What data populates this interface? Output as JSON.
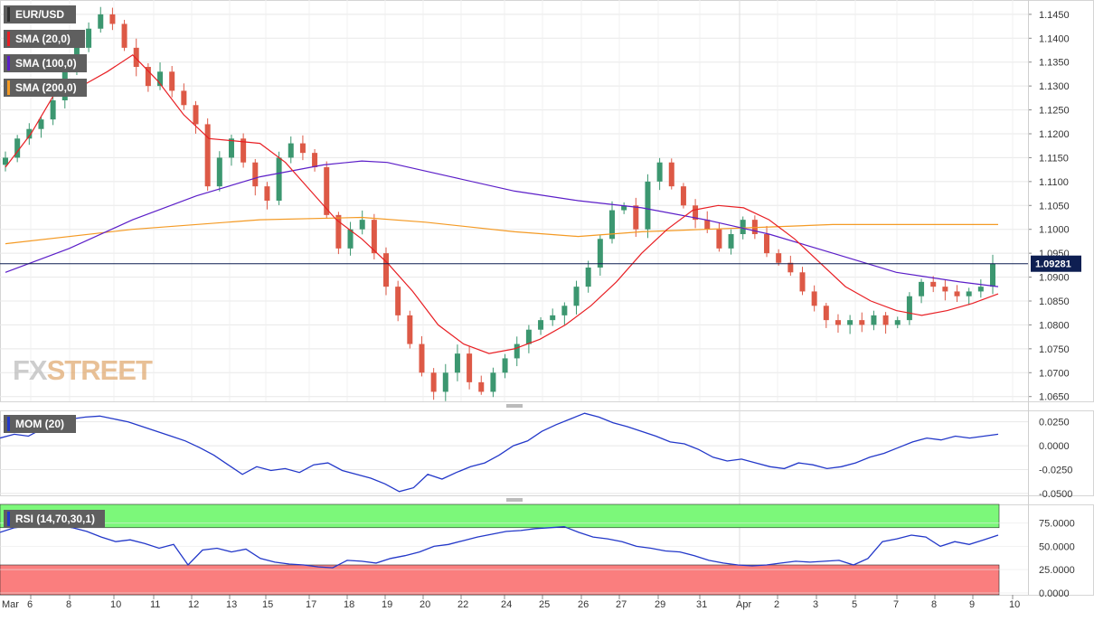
{
  "symbol": "EUR/USD",
  "colors": {
    "bull": "#3c9770",
    "bear": "#dd5946",
    "sma20": "#e81f24",
    "sma100": "#5b1ec8",
    "sma200": "#f49a24",
    "mom": "#2338c9",
    "rsi": "#2338c9",
    "overbought_zone": "#7cf87a",
    "oversold_zone": "#fa7e7e",
    "grid": "#e8e8e8",
    "last_price_line": "#0e1f52"
  },
  "legend": {
    "symbol": "EUR/USD",
    "sma20": "SMA (20,0)",
    "sma100": "SMA (100,0)",
    "sma200": "SMA (200,0)",
    "mom": "MOM (20)",
    "rsi": "RSI (14,70,30,1)"
  },
  "last_price": "1.09281",
  "watermark": {
    "part1": "FX",
    "part2": "STREET"
  },
  "chart_data": [
    {
      "type": "candlestick",
      "title": "EUR/USD",
      "timeframe_labels": [
        "Mar",
        "6",
        "8",
        "10",
        "11",
        "12",
        "13",
        "15",
        "17",
        "18",
        "19",
        "20",
        "22",
        "24",
        "25",
        "26",
        "27",
        "29",
        "31",
        "Apr",
        "2",
        "3",
        "5",
        "7",
        "8",
        "9",
        "10"
      ],
      "y_ticks": [
        "1.1450",
        "1.1400",
        "1.1350",
        "1.1300",
        "1.1250",
        "1.1200",
        "1.1150",
        "1.1100",
        "1.1050",
        "1.1000",
        "1.0950",
        "1.0900",
        "1.0850",
        "1.0800",
        "1.0750",
        "1.0700",
        "1.0650"
      ],
      "ylim": [
        1.064,
        1.148
      ],
      "last_price": 1.09281,
      "price_path": [
        1.115,
        1.119,
        1.121,
        1.123,
        1.127,
        1.133,
        1.138,
        1.142,
        1.145,
        1.143,
        1.138,
        1.134,
        1.13,
        1.133,
        1.129,
        1.126,
        1.122,
        1.109,
        1.115,
        1.119,
        1.114,
        1.109,
        1.106,
        1.115,
        1.118,
        1.116,
        1.113,
        1.103,
        1.096,
        1.1,
        1.102,
        1.095,
        1.088,
        1.082,
        1.076,
        1.07,
        1.066,
        1.07,
        1.074,
        1.068,
        1.066,
        1.07,
        1.073,
        1.076,
        1.079,
        1.081,
        1.082,
        1.084,
        1.088,
        1.092,
        1.098,
        1.104,
        1.105,
        1.1,
        1.11,
        1.114,
        1.109,
        1.105,
        1.102,
        1.1,
        1.096,
        1.099,
        1.102,
        1.099,
        1.095,
        1.093,
        1.091,
        1.087,
        1.084,
        1.081,
        1.08,
        1.081,
        1.08,
        1.082,
        1.08,
        1.081,
        1.086,
        1.089,
        1.088,
        1.087,
        1.086,
        1.087,
        1.088,
        1.0928
      ],
      "sma20": [
        [
          0,
          1.113
        ],
        [
          20,
          1.12
        ],
        [
          40,
          1.129
        ],
        [
          60,
          1.13
        ],
        [
          80,
          1.133
        ],
        [
          100,
          1.1365
        ],
        [
          120,
          1.131
        ],
        [
          140,
          1.124
        ],
        [
          160,
          1.119
        ],
        [
          180,
          1.1185
        ],
        [
          200,
          1.118
        ],
        [
          220,
          1.114
        ],
        [
          240,
          1.108
        ],
        [
          260,
          1.102
        ],
        [
          280,
          1.098
        ],
        [
          300,
          1.093
        ],
        [
          320,
          1.087
        ],
        [
          340,
          1.08
        ],
        [
          360,
          1.076
        ],
        [
          380,
          1.074
        ],
        [
          400,
          1.075
        ],
        [
          420,
          1.077
        ],
        [
          440,
          1.08
        ],
        [
          460,
          1.084
        ],
        [
          480,
          1.089
        ],
        [
          500,
          1.095
        ],
        [
          520,
          1.1
        ],
        [
          540,
          1.104
        ],
        [
          560,
          1.105
        ],
        [
          580,
          1.1045
        ],
        [
          600,
          1.102
        ],
        [
          620,
          1.098
        ],
        [
          640,
          1.093
        ],
        [
          660,
          1.088
        ],
        [
          680,
          1.085
        ],
        [
          700,
          1.083
        ],
        [
          720,
          1.082
        ],
        [
          740,
          1.083
        ],
        [
          760,
          1.0845
        ],
        [
          780,
          1.0865
        ]
      ],
      "sma100": [
        [
          0,
          1.091
        ],
        [
          50,
          1.096
        ],
        [
          100,
          1.102
        ],
        [
          150,
          1.107
        ],
        [
          200,
          1.111
        ],
        [
          250,
          1.1135
        ],
        [
          280,
          1.1143
        ],
        [
          300,
          1.114
        ],
        [
          350,
          1.111
        ],
        [
          400,
          1.108
        ],
        [
          450,
          1.106
        ],
        [
          500,
          1.1045
        ],
        [
          550,
          1.102
        ],
        [
          600,
          1.099
        ],
        [
          650,
          1.095
        ],
        [
          700,
          1.091
        ],
        [
          750,
          1.089
        ],
        [
          780,
          1.088
        ]
      ],
      "sma200": [
        [
          0,
          1.097
        ],
        [
          100,
          1.1
        ],
        [
          200,
          1.102
        ],
        [
          280,
          1.1025
        ],
        [
          330,
          1.1015
        ],
        [
          400,
          1.0995
        ],
        [
          450,
          1.0985
        ],
        [
          500,
          1.0995
        ],
        [
          550,
          1.1
        ],
        [
          600,
          1.1005
        ],
        [
          650,
          1.101
        ],
        [
          700,
          1.101
        ],
        [
          780,
          1.101
        ]
      ]
    },
    {
      "type": "line",
      "title": "MOM (20)",
      "y_ticks": [
        "0.0250",
        "0.0000",
        "-0.0250",
        "-0.0500"
      ],
      "ylim": [
        -0.052,
        0.037
      ],
      "series": [
        {
          "name": "MOM (20)",
          "values": [
            0.008,
            0.012,
            0.01,
            0.018,
            0.022,
            0.028,
            0.03,
            0.031,
            0.028,
            0.025,
            0.02,
            0.015,
            0.01,
            0.005,
            -0.002,
            -0.01,
            -0.02,
            -0.03,
            -0.022,
            -0.026,
            -0.024,
            -0.028,
            -0.02,
            -0.018,
            -0.026,
            -0.03,
            -0.034,
            -0.04,
            -0.048,
            -0.044,
            -0.03,
            -0.035,
            -0.028,
            -0.022,
            -0.018,
            -0.01,
            0.0,
            0.005,
            0.015,
            0.022,
            0.028,
            0.034,
            0.03,
            0.024,
            0.02,
            0.015,
            0.01,
            0.004,
            0.002,
            -0.004,
            -0.012,
            -0.016,
            -0.014,
            -0.018,
            -0.022,
            -0.024,
            -0.018,
            -0.02,
            -0.024,
            -0.022,
            -0.018,
            -0.012,
            -0.008,
            -0.002,
            0.004,
            0.008,
            0.006,
            0.01,
            0.008,
            0.01,
            0.012
          ]
        }
      ]
    },
    {
      "type": "line",
      "title": "RSI (14,70,30,1)",
      "y_ticks": [
        "75.0000",
        "50.0000",
        "25.0000",
        "0.0000"
      ],
      "ylim": [
        -2,
        95
      ],
      "overbought": 70,
      "oversold": 30,
      "series": [
        {
          "name": "RSI (14,70,30,1)",
          "values": [
            65,
            70,
            72,
            75,
            73,
            70,
            66,
            60,
            55,
            57,
            53,
            48,
            52,
            30,
            46,
            48,
            44,
            47,
            37,
            33,
            31,
            30,
            28,
            27,
            35,
            34,
            32,
            37,
            40,
            44,
            50,
            52,
            56,
            60,
            63,
            66,
            67,
            69,
            70,
            71,
            65,
            60,
            58,
            55,
            50,
            48,
            45,
            44,
            40,
            35,
            32,
            30,
            29,
            30,
            32,
            34,
            33,
            34,
            35,
            30,
            37,
            55,
            58,
            62,
            60,
            50,
            55,
            52,
            57,
            62
          ]
        }
      ]
    }
  ]
}
